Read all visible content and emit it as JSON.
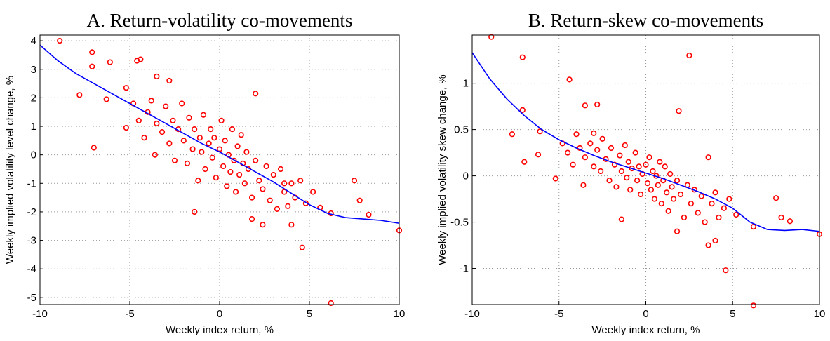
{
  "chart_data": [
    {
      "type": "scatter",
      "title": "A. Return-volatility co-movements",
      "x_label": "Weekly index return, %",
      "y_label": "Weekly implied volatility level change, %",
      "xlim": [
        -10,
        10
      ],
      "ylim": [
        -5.25,
        4.2
      ],
      "xticks": [
        -10,
        -5,
        0,
        5,
        10
      ],
      "yticks": [
        -5,
        -4,
        -3,
        -2,
        -1,
        0,
        1,
        2,
        3,
        4
      ],
      "grid": true,
      "series": [
        {
          "style": "markers",
          "color": "#ff0000",
          "x": [
            -8.9,
            -7.8,
            -7.1,
            -7.1,
            -7.0,
            -6.3,
            -6.1,
            -4.6,
            -4.4,
            -5.2,
            -5.2,
            -3.5,
            -2.8,
            2.0,
            6.2,
            4.6,
            10.0,
            7.5,
            7.8,
            8.3,
            6.2,
            5.6,
            4.0,
            2.4,
            -1.4,
            1.8,
            3.6,
            -4.8,
            -4.5,
            -4.2,
            -4,
            -3.8,
            -3.6,
            -3.5,
            -3.2,
            -3,
            -2.8,
            -2.6,
            -2.5,
            -2.3,
            -2.1,
            -2,
            -1.8,
            -1.7,
            -1.5,
            -1.4,
            -1.2,
            -1.1,
            -1,
            -0.9,
            -0.8,
            -0.6,
            -0.5,
            -0.4,
            -0.3,
            -0.2,
            0,
            0.1,
            0.2,
            0.3,
            0.4,
            0.5,
            0.6,
            0.7,
            0.8,
            0.9,
            1,
            1.1,
            1.2,
            1.3,
            1.4,
            1.5,
            1.6,
            1.8,
            2,
            2.2,
            2.4,
            2.6,
            2.8,
            3,
            3.2,
            3.4,
            3.6,
            3.8,
            4,
            4.2,
            4.5,
            4.8,
            5.2
          ],
          "values": [
            4.0,
            2.1,
            3.6,
            3.1,
            0.25,
            1.95,
            3.25,
            3.3,
            3.35,
            2.35,
            0.95,
            2.75,
            2.6,
            2.15,
            -5.2,
            -3.25,
            -2.65,
            -0.9,
            -1.6,
            -2.1,
            -2.05,
            -1.85,
            -2.45,
            -2.45,
            -2.0,
            -2.25,
            -1.0,
            1.8,
            1.2,
            0.6,
            1.5,
            1.9,
            0.0,
            1.1,
            0.8,
            1.7,
            0.4,
            1.2,
            -0.2,
            0.9,
            1.8,
            0.5,
            -0.3,
            1.3,
            0.2,
            0.9,
            -0.9,
            0.6,
            0.1,
            1.4,
            -0.5,
            0.4,
            0.9,
            -0.1,
            0.6,
            -0.8,
            0.2,
            1.2,
            -0.4,
            0.5,
            -1.1,
            0.0,
            -0.6,
            0.9,
            -0.2,
            -1.3,
            0.3,
            -0.7,
            0.7,
            -0.3,
            -1.0,
            0.1,
            -0.5,
            -1.5,
            -0.2,
            -0.9,
            -1.2,
            -0.4,
            -1.6,
            -0.7,
            -1.9,
            -0.5,
            -1.3,
            -1.8,
            -1.0,
            -1.5,
            -0.9,
            -1.7,
            -1.3
          ]
        },
        {
          "style": "line",
          "color": "#0000ff",
          "x": [
            -10,
            -9,
            -8,
            -7,
            -6,
            -5,
            -4,
            -3,
            -2,
            -1,
            0,
            1,
            2,
            3,
            4,
            5,
            6,
            7,
            8,
            9,
            10
          ],
          "values": [
            3.85,
            3.3,
            2.85,
            2.5,
            2.15,
            1.8,
            1.45,
            1.1,
            0.75,
            0.4,
            0.1,
            -0.25,
            -0.6,
            -0.95,
            -1.35,
            -1.75,
            -2.05,
            -2.2,
            -2.25,
            -2.3,
            -2.4
          ]
        }
      ]
    },
    {
      "type": "scatter",
      "title": "B. Return-skew co-movements",
      "x_label": "Weekly index return, %",
      "y_label": "Weekly implied volatility skew change, %",
      "xlim": [
        -10,
        10
      ],
      "ylim": [
        -1.39,
        1.52
      ],
      "xticks": [
        -10,
        -5,
        0,
        5,
        10
      ],
      "yticks": [
        -1,
        -0.5,
        0,
        0.5,
        1
      ],
      "grid": true,
      "series": [
        {
          "style": "markers",
          "color": "#ff0000",
          "x": [
            -8.9,
            -7.1,
            -7.1,
            -7.0,
            -7.7,
            -6.2,
            -6.1,
            -4.4,
            -5.2,
            2.5,
            1.9,
            4.6,
            6.2,
            10.0,
            7.5,
            7.8,
            8.3,
            6.2,
            4.0,
            3.6,
            1.8,
            -1.4,
            -3.5,
            -2.8,
            -3.0,
            -4.8,
            -4.5,
            -4.2,
            -4,
            -3.8,
            -3.6,
            -3.5,
            -3.2,
            -3,
            -2.8,
            -2.6,
            -2.5,
            -2.3,
            -2.1,
            -2,
            -1.8,
            -1.7,
            -1.5,
            -1.4,
            -1.2,
            -1.1,
            -1,
            -0.9,
            -0.8,
            -0.6,
            -0.5,
            -0.4,
            -0.3,
            -0.2,
            0,
            0.1,
            0.2,
            0.3,
            0.4,
            0.5,
            0.6,
            0.7,
            0.8,
            0.9,
            1,
            1.1,
            1.2,
            1.3,
            1.4,
            1.5,
            1.6,
            1.8,
            2,
            2.2,
            2.4,
            2.6,
            2.8,
            3,
            3.2,
            3.4,
            3.6,
            3.8,
            4,
            4.2,
            4.5,
            4.8,
            5.2
          ],
          "values": [
            1.5,
            1.28,
            0.71,
            0.15,
            0.45,
            0.23,
            0.48,
            1.04,
            -0.03,
            1.3,
            0.7,
            -1.02,
            -1.4,
            -0.63,
            -0.24,
            -0.45,
            -0.49,
            -0.55,
            -0.7,
            -0.75,
            -0.6,
            -0.47,
            0.76,
            0.77,
            0.46,
            0.35,
            0.25,
            0.12,
            0.45,
            0.3,
            -0.1,
            0.2,
            0.35,
            0.1,
            0.28,
            0.05,
            0.4,
            0.18,
            -0.05,
            0.3,
            0.12,
            -0.12,
            0.22,
            0.05,
            0.33,
            -0.02,
            0.15,
            -0.15,
            0.08,
            0.25,
            -0.05,
            0.1,
            -0.2,
            0.02,
            0.12,
            -0.08,
            0.2,
            -0.15,
            0.05,
            -0.25,
            0.0,
            -0.1,
            0.15,
            -0.3,
            -0.05,
            0.1,
            -0.18,
            -0.38,
            0.02,
            -0.12,
            -0.25,
            -0.05,
            -0.2,
            -0.45,
            -0.1,
            -0.3,
            -0.15,
            -0.4,
            -0.22,
            -0.5,
            0.2,
            -0.3,
            -0.18,
            -0.45,
            -0.35,
            -0.25,
            -0.42
          ]
        },
        {
          "style": "line",
          "color": "#0000ff",
          "x": [
            -10,
            -9,
            -8,
            -7,
            -6,
            -5,
            -4,
            -3,
            -2,
            -1,
            0,
            1,
            2,
            3,
            4,
            5,
            6,
            7,
            8,
            9,
            10
          ],
          "values": [
            1.33,
            1.05,
            0.83,
            0.65,
            0.5,
            0.39,
            0.3,
            0.22,
            0.15,
            0.09,
            0.03,
            -0.03,
            -0.1,
            -0.17,
            -0.25,
            -0.35,
            -0.5,
            -0.58,
            -0.59,
            -0.58,
            -0.6
          ]
        }
      ]
    }
  ]
}
